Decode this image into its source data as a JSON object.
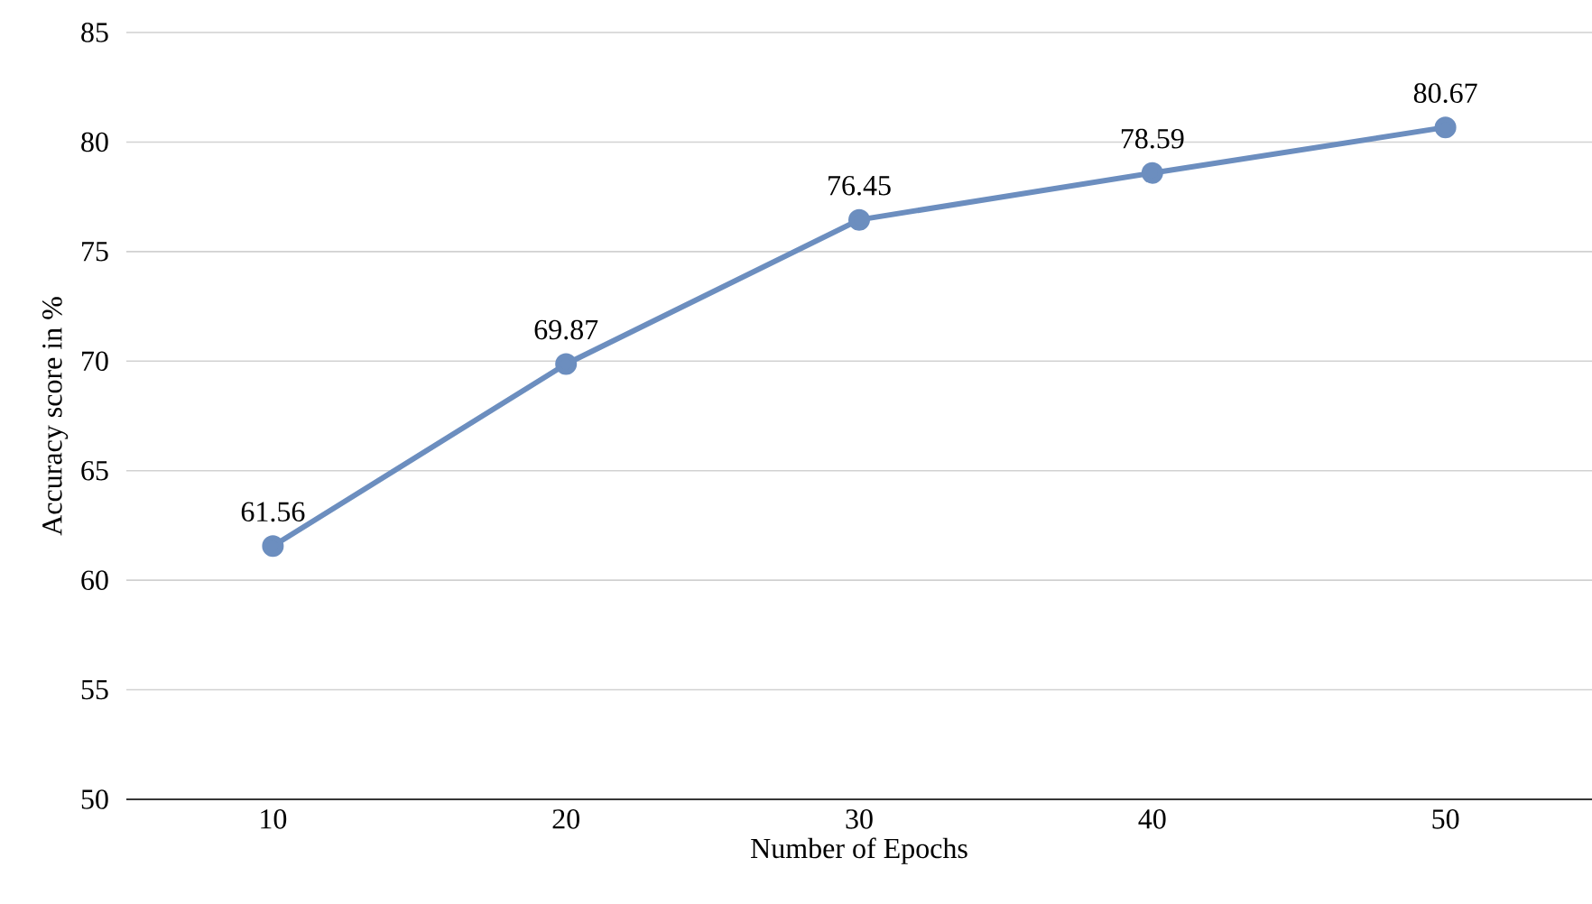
{
  "chart_data": {
    "type": "line",
    "xlabel": "Number of Epochs",
    "ylabel": "Accuracy score in %",
    "categories": [
      "10",
      "20",
      "30",
      "40",
      "50"
    ],
    "series": [
      {
        "color": "#6c8ebf",
        "values": [
          61.56,
          69.87,
          76.45,
          78.59,
          80.67
        ]
      }
    ],
    "ylim": [
      50,
      85
    ],
    "yticks": [
      50,
      55,
      60,
      65,
      70,
      75,
      80,
      85
    ],
    "grid": "y",
    "marker": "circle",
    "line_style": "solid",
    "data_labels": true
  }
}
